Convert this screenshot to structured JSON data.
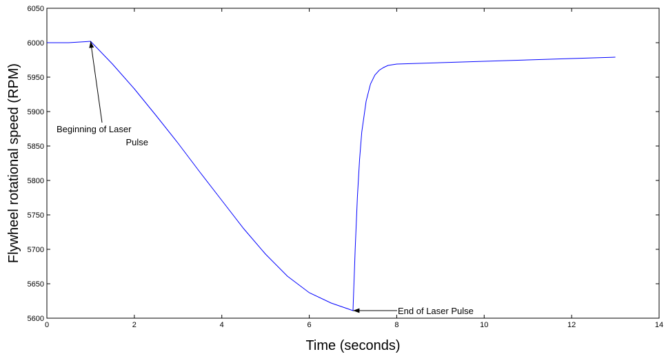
{
  "chart_data": {
    "type": "line",
    "title": "",
    "xlabel": "Time (seconds)",
    "ylabel": "Flywheel rotational speed (RPM)",
    "xlim": [
      0,
      14
    ],
    "ylim": [
      5600,
      6050
    ],
    "xticks": [
      "0",
      "2",
      "4",
      "6",
      "8",
      "10",
      "12",
      "14"
    ],
    "yticks": [
      "5600",
      "5650",
      "5700",
      "5750",
      "5800",
      "5850",
      "5900",
      "5950",
      "6000",
      "6050"
    ],
    "grid": false,
    "line_color": "#0000ff",
    "series": [
      {
        "x": [
          0,
          0.5,
          1.0,
          1.5,
          2.0,
          2.5,
          3.0,
          3.5,
          4.0,
          4.5,
          5.0,
          5.5,
          6.0,
          6.5,
          7.0,
          7.05,
          7.1,
          7.15,
          7.2,
          7.3,
          7.4,
          7.5,
          7.6,
          7.7,
          7.8,
          8.0,
          8.5,
          9.0,
          10.0,
          11.0,
          12.0,
          13.0
        ],
        "y": [
          6000,
          6000,
          6002,
          5969,
          5933,
          5894,
          5854,
          5812,
          5771,
          5730,
          5693,
          5661,
          5637,
          5622,
          5611,
          5700,
          5775,
          5830,
          5870,
          5915,
          5940,
          5953,
          5960,
          5964,
          5967,
          5969,
          5970,
          5971,
          5973,
          5975,
          5977,
          5979
        ]
      }
    ],
    "annotations": [
      {
        "lines": [
          "Beginning of Laser",
          "Pulse"
        ],
        "x": 1.0,
        "y": 6002
      },
      {
        "lines": [
          "End of Laser Pulse"
        ],
        "x": 7.0,
        "y": 5611
      }
    ]
  }
}
